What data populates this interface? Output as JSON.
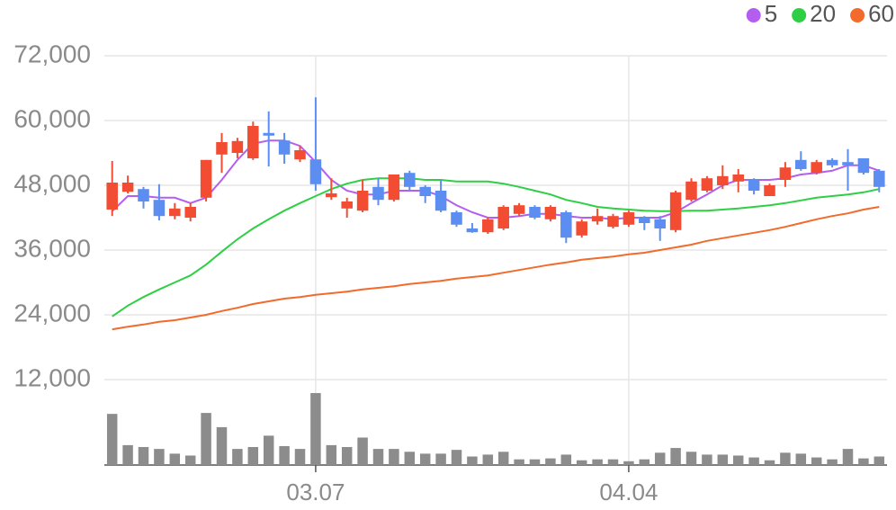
{
  "chart_data": {
    "type": "candlestick",
    "categories": [
      null,
      null,
      null,
      null,
      null,
      null,
      null,
      null,
      null,
      null,
      null,
      null,
      null,
      "03.07",
      null,
      null,
      null,
      null,
      null,
      null,
      null,
      null,
      null,
      null,
      null,
      null,
      null,
      null,
      null,
      null,
      null,
      null,
      null,
      "04.04",
      null,
      null,
      null,
      null,
      null,
      null,
      null,
      null,
      null,
      null,
      null,
      null,
      null,
      null,
      null,
      null
    ],
    "open": [
      43500,
      46800,
      47300,
      45300,
      42300,
      42000,
      45700,
      53700,
      54000,
      53000,
      57700,
      56300,
      52800,
      52800,
      45800,
      43700,
      43300,
      47700,
      45300,
      50300,
      47700,
      47000,
      43000,
      40000,
      39300,
      40000,
      42700,
      44000,
      41700,
      43000,
      38700,
      41300,
      40300,
      40700,
      42000,
      41700,
      39700,
      45300,
      47000,
      48000,
      48700,
      49000,
      46000,
      49000,
      52700,
      50300,
      52700,
      52300,
      53000,
      50700
    ],
    "high": [
      52500,
      49800,
      47700,
      48200,
      44700,
      44700,
      52700,
      57700,
      56800,
      59800,
      61700,
      57700,
      55300,
      64300,
      49300,
      45700,
      49000,
      49300,
      50000,
      50700,
      48000,
      49000,
      43300,
      41000,
      42000,
      44300,
      44700,
      44300,
      44300,
      43300,
      41700,
      43700,
      42700,
      43300,
      42300,
      42300,
      47000,
      49300,
      49700,
      51700,
      51000,
      49300,
      48300,
      52300,
      54300,
      52700,
      53000,
      54700,
      53000,
      51000
    ],
    "low": [
      42300,
      46500,
      43700,
      41500,
      41700,
      41300,
      45000,
      50300,
      53000,
      52700,
      51500,
      52000,
      52300,
      47000,
      45300,
      42000,
      43000,
      44300,
      45000,
      47000,
      44700,
      43000,
      40300,
      39200,
      39000,
      39700,
      42300,
      41700,
      41300,
      37300,
      38300,
      40700,
      40000,
      40300,
      39700,
      37700,
      39300,
      45000,
      46700,
      47300,
      46700,
      46300,
      46000,
      47700,
      50700,
      50000,
      51300,
      47000,
      50000,
      46700
    ],
    "close": [
      48500,
      48500,
      45000,
      42300,
      43700,
      44000,
      52700,
      56000,
      56200,
      59000,
      57200,
      53700,
      54500,
      48200,
      46500,
      45000,
      47000,
      45300,
      50000,
      47700,
      46000,
      43300,
      40700,
      39300,
      41700,
      44000,
      44300,
      42000,
      44000,
      38300,
      41300,
      42300,
      42300,
      43000,
      41000,
      40000,
      46700,
      48700,
      49300,
      49700,
      50000,
      47000,
      48000,
      51300,
      51000,
      52300,
      51700,
      51700,
      50300,
      47700
    ],
    "volume": [
      54,
      21,
      19,
      17,
      12,
      10,
      55,
      40,
      17,
      19,
      31,
      20,
      17,
      76,
      21,
      19,
      29,
      17,
      17,
      14,
      12,
      12,
      16,
      9,
      11,
      14,
      6,
      6,
      7,
      11,
      5,
      6,
      6,
      4,
      6,
      13,
      18,
      14,
      11,
      11,
      10,
      8,
      5,
      13,
      12,
      8,
      6,
      17,
      7,
      9
    ],
    "up_color": "#f24d33",
    "down_color": "#5b8ef0",
    "volume_color": "#8c8c8c",
    "series": [
      {
        "name": "5",
        "color": "#b45ef0",
        "values": [
          43200,
          46000,
          46000,
          45700,
          45700,
          44700,
          45700,
          49000,
          52700,
          55700,
          56300,
          56300,
          55300,
          52300,
          49000,
          47000,
          46300,
          46300,
          47000,
          47000,
          47000,
          46000,
          44300,
          43000,
          42000,
          42000,
          42300,
          42700,
          42700,
          42300,
          42000,
          42000,
          41700,
          42000,
          42000,
          42000,
          43000,
          44700,
          46300,
          48000,
          49000,
          49000,
          49000,
          49300,
          50000,
          50300,
          50700,
          51700,
          51700,
          50700
        ]
      },
      {
        "name": "20",
        "color": "#2fcf45",
        "values": [
          23700,
          25700,
          27300,
          28700,
          30000,
          31300,
          33300,
          35700,
          38000,
          40000,
          41700,
          43300,
          44700,
          46000,
          47300,
          48300,
          49000,
          49300,
          49300,
          49300,
          49000,
          49000,
          48700,
          48700,
          48700,
          48300,
          47700,
          47000,
          46300,
          45300,
          44700,
          44000,
          43700,
          43500,
          43300,
          43200,
          43200,
          43300,
          43300,
          43500,
          43700,
          44000,
          44300,
          44700,
          45200,
          45700,
          46000,
          46300,
          46700,
          47300
        ]
      },
      {
        "name": "60",
        "color": "#f26a2c",
        "values": [
          21300,
          21800,
          22200,
          22700,
          23000,
          23500,
          24000,
          24700,
          25300,
          26000,
          26500,
          27000,
          27300,
          27700,
          28000,
          28300,
          28700,
          29000,
          29300,
          29700,
          30000,
          30300,
          30700,
          31000,
          31300,
          31800,
          32300,
          32800,
          33300,
          33700,
          34200,
          34500,
          34800,
          35200,
          35500,
          36000,
          36500,
          37000,
          37700,
          38200,
          38700,
          39200,
          39700,
          40300,
          41000,
          41700,
          42300,
          42800,
          43500,
          44000
        ]
      }
    ],
    "ylim": [
      0,
      72000
    ],
    "yticks": [
      {
        "value": 12000,
        "label": "12,000"
      },
      {
        "value": 24000,
        "label": "24,000"
      },
      {
        "value": 36000,
        "label": "36,000"
      },
      {
        "value": 48000,
        "label": "48,000"
      },
      {
        "value": 60000,
        "label": "60,000"
      },
      {
        "value": 72000,
        "label": "72,000"
      }
    ],
    "grid": true,
    "legend": "top-right"
  }
}
